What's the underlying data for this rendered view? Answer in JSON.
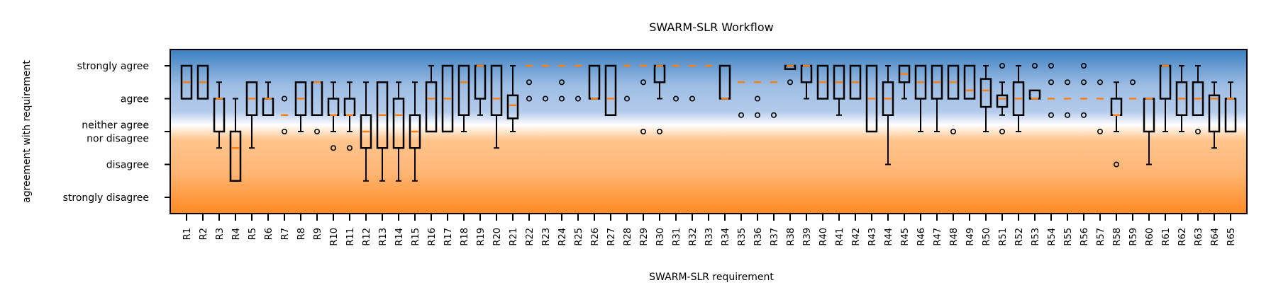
{
  "chart_data": {
    "type": "boxplot",
    "title": "SWARM-SLR Workflow",
    "xlabel": "SWARM-SLR requirement",
    "ylabel": "agreement with requirement",
    "y_tick_labels": [
      "strongly disagree",
      "disagree",
      "neither agree\nnor disagree",
      "agree",
      "strongly agree"
    ],
    "y_tick_values": [
      1,
      2,
      3,
      4,
      5
    ],
    "ylim": [
      0.5,
      5.5
    ],
    "background_gradient": {
      "top": "#3a7fc0",
      "middle": "#ffffff",
      "bottom": "#ff8c28"
    },
    "colors": {
      "box": "#000000",
      "median": "#ff7f0e",
      "flier": "#000000"
    },
    "categories": [
      "R1",
      "R2",
      "R3",
      "R4",
      "R5",
      "R6",
      "R7",
      "R8",
      "R9",
      "R10",
      "R11",
      "R12",
      "R13",
      "R14",
      "R15",
      "R16",
      "R17",
      "R18",
      "R19",
      "R20",
      "R21",
      "R22",
      "R23",
      "R24",
      "R25",
      "R26",
      "R27",
      "R28",
      "R29",
      "R30",
      "R31",
      "R32",
      "R33",
      "R34",
      "R35",
      "R36",
      "R37",
      "R38",
      "R39",
      "R40",
      "R41",
      "R42",
      "R43",
      "R44",
      "R45",
      "R46",
      "R47",
      "R48",
      "R49",
      "R50",
      "R51",
      "R52",
      "R53",
      "R54",
      "R55",
      "R56",
      "R57",
      "R58",
      "R59",
      "R60",
      "R61",
      "R62",
      "R63",
      "R64",
      "R65"
    ],
    "boxes": [
      {
        "q1": 4,
        "q3": 5,
        "med": 4.5,
        "wlo": 4,
        "whi": 5,
        "fliers": []
      },
      {
        "q1": 4,
        "q3": 5,
        "med": 4.5,
        "wlo": 4,
        "whi": 5,
        "fliers": []
      },
      {
        "q1": 3,
        "q3": 4,
        "med": 4,
        "wlo": 2.5,
        "whi": 4.5,
        "fliers": []
      },
      {
        "q1": 1.5,
        "q3": 3,
        "med": 2.5,
        "wlo": 1.5,
        "whi": 4,
        "fliers": []
      },
      {
        "q1": 3.5,
        "q3": 4.5,
        "med": 4,
        "wlo": 2.5,
        "whi": 4.5,
        "fliers": []
      },
      {
        "q1": 3.5,
        "q3": 4,
        "med": 4,
        "wlo": 3.5,
        "whi": 4.5,
        "fliers": []
      },
      {
        "q1": 3.5,
        "q3": 3.5,
        "med": 3.5,
        "wlo": 3.5,
        "whi": 3.5,
        "fliers": [
          4,
          3
        ]
      },
      {
        "q1": 3.5,
        "q3": 4.5,
        "med": 4,
        "wlo": 3,
        "whi": 4.5,
        "fliers": []
      },
      {
        "q1": 3.5,
        "q3": 4.5,
        "med": 4.5,
        "wlo": 3.5,
        "whi": 4.5,
        "fliers": [
          3
        ]
      },
      {
        "q1": 3.5,
        "q3": 4,
        "med": 3.5,
        "wlo": 3,
        "whi": 4.5,
        "fliers": [
          2.5
        ]
      },
      {
        "q1": 3.5,
        "q3": 4,
        "med": 3.5,
        "wlo": 3,
        "whi": 4.5,
        "fliers": [
          2.5
        ]
      },
      {
        "q1": 2.5,
        "q3": 3.5,
        "med": 3,
        "wlo": 1.5,
        "whi": 4.5,
        "fliers": []
      },
      {
        "q1": 2.5,
        "q3": 4.5,
        "med": 3.5,
        "wlo": 1.5,
        "whi": 4.5,
        "fliers": []
      },
      {
        "q1": 2.5,
        "q3": 4,
        "med": 3.5,
        "wlo": 1.5,
        "whi": 4.5,
        "fliers": []
      },
      {
        "q1": 2.5,
        "q3": 3.5,
        "med": 3,
        "wlo": 1.5,
        "whi": 4.5,
        "fliers": []
      },
      {
        "q1": 3,
        "q3": 4.5,
        "med": 4,
        "wlo": 3,
        "whi": 5,
        "fliers": []
      },
      {
        "q1": 3,
        "q3": 5,
        "med": 4,
        "wlo": 3,
        "whi": 5,
        "fliers": []
      },
      {
        "q1": 3.5,
        "q3": 5,
        "med": 4.5,
        "wlo": 3,
        "whi": 5,
        "fliers": []
      },
      {
        "q1": 4,
        "q3": 5,
        "med": 5,
        "wlo": 3.5,
        "whi": 5,
        "fliers": []
      },
      {
        "q1": 3.5,
        "q3": 5,
        "med": 4,
        "wlo": 2.5,
        "whi": 5,
        "fliers": []
      },
      {
        "q1": 3.4,
        "q3": 4.1,
        "med": 3.8,
        "wlo": 3,
        "whi": 5,
        "fliers": []
      },
      {
        "q1": 5,
        "q3": 5,
        "med": 5,
        "wlo": 5,
        "whi": 5,
        "fliers": [
          4.5,
          4
        ]
      },
      {
        "q1": 5,
        "q3": 5,
        "med": 5,
        "wlo": 5,
        "whi": 5,
        "fliers": [
          4
        ]
      },
      {
        "q1": 5,
        "q3": 5,
        "med": 5,
        "wlo": 5,
        "whi": 5,
        "fliers": [
          4.5,
          4
        ]
      },
      {
        "q1": 5,
        "q3": 5,
        "med": 5,
        "wlo": 5,
        "whi": 5,
        "fliers": [
          4
        ]
      },
      {
        "q1": 4,
        "q3": 5,
        "med": 4,
        "wlo": 4,
        "whi": 5,
        "fliers": []
      },
      {
        "q1": 3.5,
        "q3": 5,
        "med": 4,
        "wlo": 3.5,
        "whi": 5,
        "fliers": []
      },
      {
        "q1": 5,
        "q3": 5,
        "med": 5,
        "wlo": 5,
        "whi": 5,
        "fliers": [
          4
        ]
      },
      {
        "q1": 5,
        "q3": 5,
        "med": 5,
        "wlo": 5,
        "whi": 5,
        "fliers": [
          4.5,
          3
        ]
      },
      {
        "q1": 4.5,
        "q3": 5,
        "med": 5,
        "wlo": 4,
        "whi": 5,
        "fliers": [
          3
        ]
      },
      {
        "q1": 5,
        "q3": 5,
        "med": 5,
        "wlo": 5,
        "whi": 5,
        "fliers": [
          4
        ]
      },
      {
        "q1": 5,
        "q3": 5,
        "med": 5,
        "wlo": 5,
        "whi": 5,
        "fliers": [
          4
        ]
      },
      {
        "q1": 5,
        "q3": 5,
        "med": 5,
        "wlo": 5,
        "whi": 5,
        "fliers": []
      },
      {
        "q1": 4,
        "q3": 5,
        "med": 4,
        "wlo": 4,
        "whi": 5,
        "fliers": []
      },
      {
        "q1": 4.5,
        "q3": 4.5,
        "med": 4.5,
        "wlo": 4.5,
        "whi": 4.5,
        "fliers": [
          3.5
        ]
      },
      {
        "q1": 4.5,
        "q3": 4.5,
        "med": 4.5,
        "wlo": 4.5,
        "whi": 4.5,
        "fliers": [
          4,
          3.5
        ]
      },
      {
        "q1": 4.5,
        "q3": 4.5,
        "med": 4.5,
        "wlo": 4.5,
        "whi": 4.5,
        "fliers": [
          3.5
        ]
      },
      {
        "q1": 4.9,
        "q3": 5,
        "med": 5,
        "wlo": 4.9,
        "whi": 5,
        "fliers": [
          4.5
        ]
      },
      {
        "q1": 4.5,
        "q3": 5,
        "med": 5,
        "wlo": 4,
        "whi": 5,
        "fliers": []
      },
      {
        "q1": 4,
        "q3": 5,
        "med": 4.5,
        "wlo": 4,
        "whi": 5,
        "fliers": []
      },
      {
        "q1": 4,
        "q3": 5,
        "med": 4.5,
        "wlo": 3.5,
        "whi": 5,
        "fliers": []
      },
      {
        "q1": 4,
        "q3": 5,
        "med": 4.5,
        "wlo": 4,
        "whi": 5,
        "fliers": []
      },
      {
        "q1": 3,
        "q3": 5,
        "med": 4,
        "wlo": 3,
        "whi": 5,
        "fliers": []
      },
      {
        "q1": 3.5,
        "q3": 4.5,
        "med": 4,
        "wlo": 2,
        "whi": 5,
        "fliers": []
      },
      {
        "q1": 4.5,
        "q3": 5,
        "med": 4.75,
        "wlo": 4,
        "whi": 5,
        "fliers": []
      },
      {
        "q1": 4,
        "q3": 5,
        "med": 4.5,
        "wlo": 3,
        "whi": 5,
        "fliers": []
      },
      {
        "q1": 4,
        "q3": 5,
        "med": 4.5,
        "wlo": 3,
        "whi": 5,
        "fliers": []
      },
      {
        "q1": 4,
        "q3": 5,
        "med": 4.5,
        "wlo": 4,
        "whi": 5,
        "fliers": [
          3
        ]
      },
      {
        "q1": 4,
        "q3": 5,
        "med": 4.25,
        "wlo": 4,
        "whi": 5,
        "fliers": []
      },
      {
        "q1": 3.75,
        "q3": 4.6,
        "med": 4.25,
        "wlo": 3,
        "whi": 5,
        "fliers": []
      },
      {
        "q1": 3.75,
        "q3": 4.1,
        "med": 4,
        "wlo": 3.5,
        "whi": 4.5,
        "fliers": [
          5,
          3
        ]
      },
      {
        "q1": 3.5,
        "q3": 4.5,
        "med": 4,
        "wlo": 3,
        "whi": 5,
        "fliers": []
      },
      {
        "q1": 4,
        "q3": 4.25,
        "med": 4,
        "wlo": 4,
        "whi": 4.25,
        "fliers": [
          5
        ]
      },
      {
        "q1": 4,
        "q3": 4,
        "med": 4,
        "wlo": 4,
        "whi": 4,
        "fliers": [
          5,
          4.5,
          3.5
        ]
      },
      {
        "q1": 4,
        "q3": 4,
        "med": 4,
        "wlo": 4,
        "whi": 4,
        "fliers": [
          4.5,
          3.5
        ]
      },
      {
        "q1": 4,
        "q3": 4,
        "med": 4,
        "wlo": 4,
        "whi": 4,
        "fliers": [
          5,
          4.5,
          3.5
        ]
      },
      {
        "q1": 4,
        "q3": 4,
        "med": 4,
        "wlo": 4,
        "whi": 4,
        "fliers": [
          4.5,
          3
        ]
      },
      {
        "q1": 3.5,
        "q3": 4,
        "med": 3.5,
        "wlo": 3,
        "whi": 4.5,
        "fliers": [
          2
        ]
      },
      {
        "q1": 4,
        "q3": 4,
        "med": 4,
        "wlo": 4,
        "whi": 4,
        "fliers": [
          4.5
        ]
      },
      {
        "q1": 3,
        "q3": 4,
        "med": 4,
        "wlo": 2,
        "whi": 4,
        "fliers": []
      },
      {
        "q1": 4,
        "q3": 5,
        "med": 5,
        "wlo": 3,
        "whi": 5,
        "fliers": []
      },
      {
        "q1": 3.5,
        "q3": 4.5,
        "med": 4,
        "wlo": 3,
        "whi": 5,
        "fliers": []
      },
      {
        "q1": 3.5,
        "q3": 4.5,
        "med": 4,
        "wlo": 3.5,
        "whi": 5,
        "fliers": [
          3
        ]
      },
      {
        "q1": 3,
        "q3": 4.1,
        "med": 4,
        "wlo": 2.5,
        "whi": 4.5,
        "fliers": []
      },
      {
        "q1": 3,
        "q3": 4,
        "med": 4,
        "wlo": 3,
        "whi": 4.5,
        "fliers": []
      }
    ]
  }
}
